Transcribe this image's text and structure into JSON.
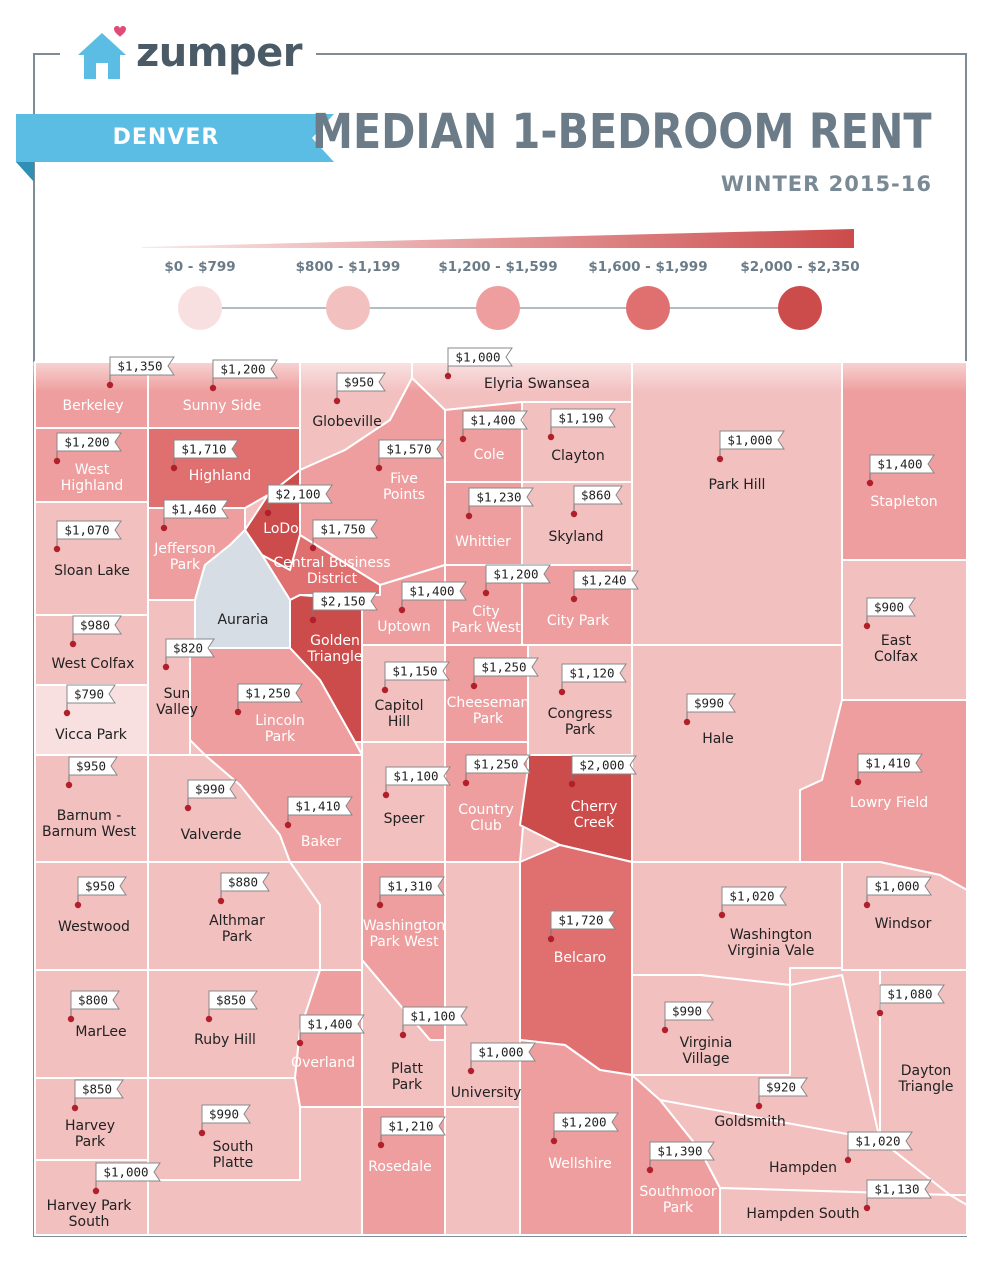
{
  "brand": {
    "name": "zumper",
    "logo_icon": "house-icon"
  },
  "city": "DENVER",
  "title": "MEDIAN 1-BEDROOM RENT",
  "subtitle": "WINTER 2015-16",
  "legend": {
    "buckets": [
      {
        "label": "$0 - $799",
        "color": "#f9e0e0"
      },
      {
        "label": "$800 - $1,199",
        "color": "#f3c0c0"
      },
      {
        "label": "$1,200 - $1,599",
        "color": "#ee9e9e"
      },
      {
        "label": "$1,600 - $1,999",
        "color": "#e07070"
      },
      {
        "label": "$2,000 - $2,350",
        "color": "#cc4b4b"
      }
    ]
  },
  "colors": {
    "border": "#7d8c97",
    "banner": "#5bbde4",
    "title": "#6b7c88",
    "unranked": "#d6dde4"
  },
  "neighborhoods": [
    {
      "name": "Berkeley",
      "price": "$1,350",
      "bucket": 2
    },
    {
      "name": "Sunny Side",
      "price": "$1,200",
      "bucket": 2
    },
    {
      "name": "Globeville",
      "price": "$950",
      "bucket": 1
    },
    {
      "name": "Elyria Swansea",
      "price": "$1,000",
      "bucket": 1
    },
    {
      "name": "West Highland",
      "price": "$1,200",
      "bucket": 2
    },
    {
      "name": "Highland",
      "price": "$1,710",
      "bucket": 3
    },
    {
      "name": "Five Points",
      "price": "$1,570",
      "bucket": 2
    },
    {
      "name": "Cole",
      "price": "$1,400",
      "bucket": 2
    },
    {
      "name": "Clayton",
      "price": "$1,190",
      "bucket": 1
    },
    {
      "name": "Park Hill",
      "price": "$1,000",
      "bucket": 1
    },
    {
      "name": "Stapleton",
      "price": "$1,400",
      "bucket": 2
    },
    {
      "name": "LoDo",
      "price": "$2,100",
      "bucket": 4
    },
    {
      "name": "Jefferson Park",
      "price": "$1,460",
      "bucket": 2
    },
    {
      "name": "Central Business District",
      "price": "$1,750",
      "bucket": 3
    },
    {
      "name": "Whittier",
      "price": "$1,230",
      "bucket": 2
    },
    {
      "name": "Skyland",
      "price": "$860",
      "bucket": 1
    },
    {
      "name": "Sloan Lake",
      "price": "$1,070",
      "bucket": 1
    },
    {
      "name": "Auraria",
      "price": "",
      "bucket": -1
    },
    {
      "name": "Golden Triangle",
      "price": "$2,150",
      "bucket": 4
    },
    {
      "name": "Uptown",
      "price": "$1,400",
      "bucket": 2
    },
    {
      "name": "City Park West",
      "price": "$1,200",
      "bucket": 2
    },
    {
      "name": "City Park",
      "price": "$1,240",
      "bucket": 2
    },
    {
      "name": "East Colfax",
      "price": "$900",
      "bucket": 1
    },
    {
      "name": "West Colfax",
      "price": "$980",
      "bucket": 1
    },
    {
      "name": "Sun Valley",
      "price": "$820",
      "bucket": 1
    },
    {
      "name": "Capitol Hill",
      "price": "$1,150",
      "bucket": 1
    },
    {
      "name": "Cheeseman Park",
      "price": "$1,250",
      "bucket": 2
    },
    {
      "name": "Congress Park",
      "price": "$1,120",
      "bucket": 1
    },
    {
      "name": "Vicca Park",
      "price": "$790",
      "bucket": 0
    },
    {
      "name": "Lincoln Park",
      "price": "$1,250",
      "bucket": 2
    },
    {
      "name": "Hale",
      "price": "$990",
      "bucket": 1
    },
    {
      "name": "Speer",
      "price": "$1,100",
      "bucket": 1
    },
    {
      "name": "Country Club",
      "price": "$1,250",
      "bucket": 2
    },
    {
      "name": "Cherry Creek",
      "price": "$2,000",
      "bucket": 4
    },
    {
      "name": "Lowry Field",
      "price": "$1,410",
      "bucket": 2
    },
    {
      "name": "Barnum - Barnum West",
      "price": "$950",
      "bucket": 1
    },
    {
      "name": "Valverde",
      "price": "$990",
      "bucket": 1
    },
    {
      "name": "Baker",
      "price": "$1,410",
      "bucket": 2
    },
    {
      "name": "Westwood",
      "price": "$950",
      "bucket": 1
    },
    {
      "name": "Althmar Park",
      "price": "$880",
      "bucket": 1
    },
    {
      "name": "Washington Park West",
      "price": "$1,310",
      "bucket": 2
    },
    {
      "name": "Belcaro",
      "price": "$1,720",
      "bucket": 3
    },
    {
      "name": "Washington Virginia Vale",
      "price": "$1,020",
      "bucket": 1
    },
    {
      "name": "Windsor",
      "price": "$1,000",
      "bucket": 1
    },
    {
      "name": "MarLee",
      "price": "$800",
      "bucket": 1
    },
    {
      "name": "Ruby Hill",
      "price": "$850",
      "bucket": 1
    },
    {
      "name": "Overland",
      "price": "$1,400",
      "bucket": 2
    },
    {
      "name": "Platt Park",
      "price": "$1,100",
      "bucket": 1
    },
    {
      "name": "University",
      "price": "$1,000",
      "bucket": 1
    },
    {
      "name": "Virginia Village",
      "price": "$990",
      "bucket": 1
    },
    {
      "name": "Dayton Triangle",
      "price": "$1,080",
      "bucket": 1
    },
    {
      "name": "Harvey Park",
      "price": "$850",
      "bucket": 1
    },
    {
      "name": "South Platte",
      "price": "$990",
      "bucket": 1
    },
    {
      "name": "Rosedale",
      "price": "$1,210",
      "bucket": 2
    },
    {
      "name": "Wellshire",
      "price": "$1,200",
      "bucket": 2
    },
    {
      "name": "Goldsmith",
      "price": "$920",
      "bucket": 1
    },
    {
      "name": "Southmoor Park",
      "price": "$1,390",
      "bucket": 2
    },
    {
      "name": "Hampden",
      "price": "$1,020",
      "bucket": 1
    },
    {
      "name": "Harvey Park South",
      "price": "$1,000",
      "bucket": 1
    },
    {
      "name": "Hampden South",
      "price": "$1,130",
      "bucket": 1
    }
  ]
}
